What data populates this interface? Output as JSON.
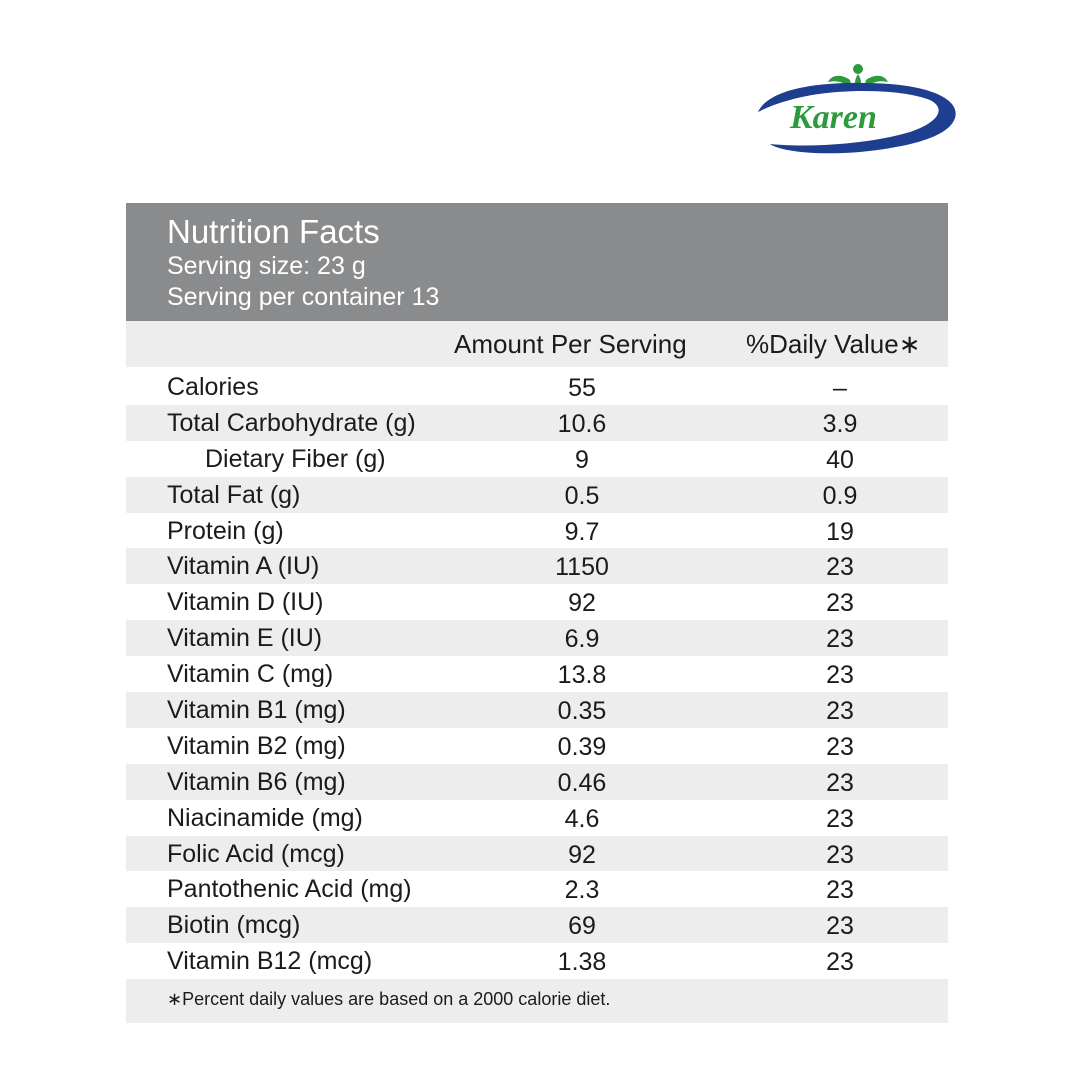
{
  "brand": {
    "logo_text": "Karen",
    "blue": "#1e3f8f",
    "green": "#2e9a3e"
  },
  "header": {
    "title": "Nutrition Facts",
    "serving_size": "Serving size: 23 g",
    "servings_per_container": "Serving per container 13",
    "background": "#8a8b8d"
  },
  "columns": {
    "amount": "Amount Per Serving",
    "daily_value": "%Daily Value∗"
  },
  "rows": [
    {
      "name": "Calories",
      "amount": "55",
      "dv": "–"
    },
    {
      "name": "Total Carbohydrate (g)",
      "amount": "10.6",
      "dv": "3.9"
    },
    {
      "name": "Dietary Fiber (g)",
      "amount": "9",
      "dv": "40",
      "indent": true
    },
    {
      "name": "Total Fat (g)",
      "amount": "0.5",
      "dv": "0.9"
    },
    {
      "name": "Protein (g)",
      "amount": "9.7",
      "dv": "19"
    },
    {
      "name": "Vitamin A (IU)",
      "amount": "1150",
      "dv": "23"
    },
    {
      "name": "Vitamin D (IU)",
      "amount": "92",
      "dv": "23"
    },
    {
      "name": "Vitamin E (IU)",
      "amount": "6.9",
      "dv": "23"
    },
    {
      "name": "Vitamin C (mg)",
      "amount": "13.8",
      "dv": "23"
    },
    {
      "name": "Vitamin B1 (mg)",
      "amount": "0.35",
      "dv": "23"
    },
    {
      "name": "Vitamin B2 (mg)",
      "amount": "0.39",
      "dv": "23"
    },
    {
      "name": "Vitamin B6 (mg)",
      "amount": "0.46",
      "dv": "23"
    },
    {
      "name": "Niacinamide (mg)",
      "amount": "4.6",
      "dv": "23"
    },
    {
      "name": "Folic Acid (mcg)",
      "amount": "92",
      "dv": "23"
    },
    {
      "name": "Pantothenic Acid (mg)",
      "amount": "2.3",
      "dv": "23"
    },
    {
      "name": "Biotin (mcg)",
      "amount": "69",
      "dv": "23"
    },
    {
      "name": "Vitamin B12 (mcg)",
      "amount": "1.38",
      "dv": "23"
    }
  ],
  "footnote": "∗Percent daily values are based on a 2000 calorie diet."
}
